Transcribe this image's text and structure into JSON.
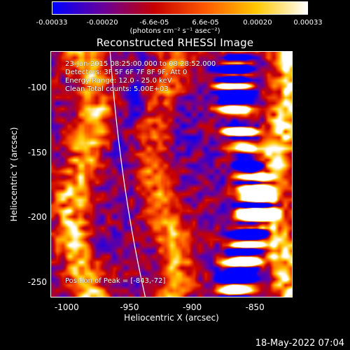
{
  "chart_data": {
    "type": "heatmap",
    "title": "Reconstructed RHESSI Image",
    "xlabel": "Heliocentric X (arcsec)",
    "ylabel": "Heliocentric Y (arcsec)",
    "xlim": [
      -1013,
      -820
    ],
    "ylim": [
      -262,
      -72
    ],
    "x_ticks": [
      "-1000",
      "-950",
      "-900",
      "-850"
    ],
    "x_tick_values": [
      -1000,
      -950,
      -900,
      -850
    ],
    "y_ticks": [
      "-100",
      "-150",
      "-200",
      "-250"
    ],
    "y_tick_values": [
      -100,
      -150,
      -200,
      -250
    ],
    "colorbar": {
      "range": [
        -0.00033,
        0.00033
      ],
      "ticks": [
        "-0.00033",
        "-0.00020",
        "-6.6e-05",
        "6.6e-05",
        "0.00020",
        "0.00033"
      ],
      "tick_values": [
        -0.00033,
        -0.0002,
        -6.6e-05,
        6.6e-05,
        0.0002,
        0.00033
      ],
      "units": "(photons cm⁻² s⁻¹ asec⁻²)",
      "colors": [
        "#0000ff",
        "#6a009a",
        "#c80000",
        "#ff5a00",
        "#ffc800",
        "#ffffff"
      ]
    },
    "annotations": [
      "23-Jan-2015 08:25:00.000 to 08:28:52.000",
      "Detectors: 3F 5F 6F 7F 8F 9F, Att 0",
      "Energy Range: 12.0 - 25.0 keV",
      "Clean      Total counts: 5.00E+03"
    ],
    "peak_text": "Position of Peak = [-843,-72]",
    "peak": [
      -843,
      -72
    ],
    "limb_color": "#ffffff"
  },
  "footer": "18-May-2022 07:04"
}
